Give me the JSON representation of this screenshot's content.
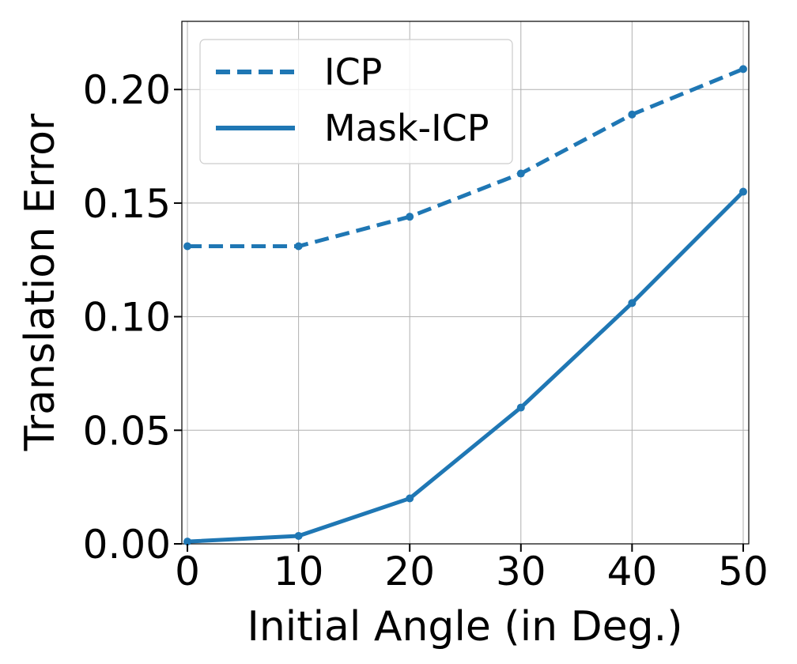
{
  "chart_data": {
    "type": "line",
    "title": "",
    "xlabel": "Initial Angle (in Deg.)",
    "ylabel": "Translation Error",
    "x": [
      0,
      10,
      20,
      30,
      40,
      50
    ],
    "xlim": [
      -0.5,
      50.5
    ],
    "ylim": [
      0.0,
      0.23
    ],
    "xticks": [
      0,
      10,
      20,
      30,
      40,
      50
    ],
    "xtick_labels": [
      "0",
      "10",
      "20",
      "30",
      "40",
      "50"
    ],
    "yticks": [
      0.0,
      0.05,
      0.1,
      0.15,
      0.2
    ],
    "ytick_labels": [
      "0.00",
      "0.05",
      "0.10",
      "0.15",
      "0.20"
    ],
    "grid": true,
    "legend_position": "top-left",
    "series": [
      {
        "name": "ICP",
        "line_style": "dashed",
        "color": "#1f77b4",
        "values": [
          0.131,
          0.131,
          0.144,
          0.163,
          0.189,
          0.209
        ]
      },
      {
        "name": "Mask-ICP",
        "line_style": "solid",
        "color": "#1f77b4",
        "values": [
          0.001,
          0.0035,
          0.02,
          0.06,
          0.106,
          0.155
        ]
      }
    ]
  }
}
